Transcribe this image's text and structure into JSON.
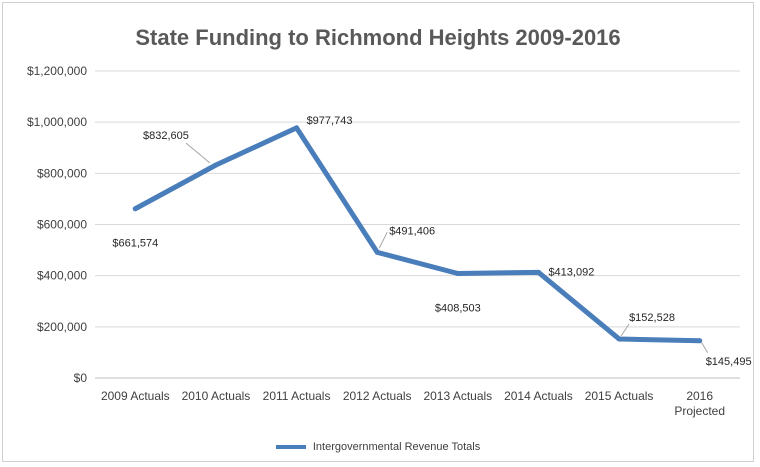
{
  "chart_data": {
    "type": "line",
    "title": "State Funding to Richmond Heights 2009-2016",
    "categories": [
      "2009 Actuals",
      "2010 Actuals",
      "2011 Actuals",
      "2012 Actuals",
      "2013 Actuals",
      "2014 Actuals",
      "2015 Actuals",
      "2016 Projected"
    ],
    "category_lines": [
      [
        "2009 Actuals"
      ],
      [
        "2010 Actuals"
      ],
      [
        "2011 Actuals"
      ],
      [
        "2012 Actuals"
      ],
      [
        "2013 Actuals"
      ],
      [
        "2014 Actuals"
      ],
      [
        "2015 Actuals"
      ],
      [
        "2016",
        "Projected"
      ]
    ],
    "series": [
      {
        "name": "Intergovernmental Revenue Totals",
        "values": [
          661574,
          832605,
          977743,
          491406,
          408503,
          413092,
          152528,
          145495
        ],
        "labels": [
          "$661,574",
          "$832,605",
          "$977,743",
          "$491,406",
          "$408,503",
          "$413,092",
          "$152,528",
          "$145,495"
        ],
        "color": "#4a7ebb"
      }
    ],
    "ylim": [
      0,
      1200000
    ],
    "yticks": [
      0,
      200000,
      400000,
      600000,
      800000,
      1000000,
      1200000
    ],
    "ytick_labels": [
      "$0",
      "$200,000",
      "$400,000",
      "$600,000",
      "$800,000",
      "$1,000,000",
      "$1,200,000"
    ],
    "grid": true,
    "legend_position": "bottom"
  }
}
